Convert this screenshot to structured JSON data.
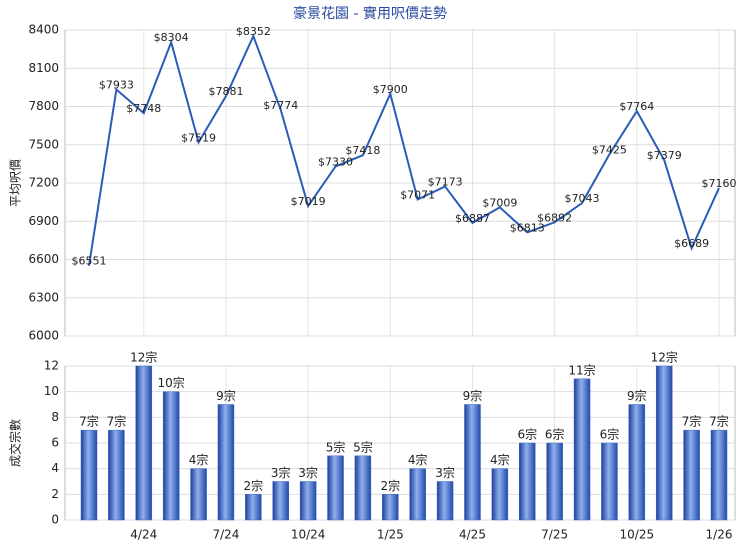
{
  "chart_data": [
    {
      "type": "line",
      "title": "豪景花園 - 實用呎價走勢",
      "ylabel": "平均呎價",
      "color": "#2a5cb8",
      "values": [
        6551,
        7933,
        7748,
        8304,
        7519,
        7881,
        8352,
        7774,
        7019,
        7330,
        7418,
        7900,
        7071,
        7173,
        6887,
        7009,
        6813,
        6892,
        7043,
        7425,
        7764,
        7379,
        6689,
        7160
      ],
      "value_labels": [
        "$6551",
        "$7933",
        "$7748",
        "$8304",
        "$7519",
        "$7881",
        "$8352",
        "$7774",
        "$7019",
        "$7330",
        "$7418",
        "$7900",
        "$7071",
        "$7173",
        "$6887",
        "$7009",
        "$6813",
        "$6892",
        "$7043",
        "$7425",
        "$7764",
        "$7379",
        "$6689",
        "$7160"
      ],
      "ylim": [
        6000,
        8400
      ],
      "yticks": [
        6000,
        6300,
        6600,
        6900,
        7200,
        7500,
        7800,
        8100,
        8400
      ],
      "grid": true
    },
    {
      "type": "bar",
      "ylabel": "成交宗數",
      "color": "#3a66c4",
      "categories": [
        null,
        null,
        "4/24",
        null,
        null,
        "7/24",
        null,
        null,
        "10/24",
        null,
        null,
        "1/25",
        null,
        null,
        "4/25",
        null,
        null,
        "7/25",
        null,
        null,
        "10/25",
        null,
        null,
        "1/26"
      ],
      "values": [
        7,
        7,
        12,
        10,
        4,
        9,
        2,
        3,
        3,
        5,
        5,
        2,
        4,
        3,
        9,
        4,
        6,
        6,
        11,
        6,
        9,
        12,
        7,
        7
      ],
      "value_labels": [
        "7宗",
        "7宗",
        "12宗",
        "10宗",
        "4宗",
        "9宗",
        "2宗",
        "3宗",
        "3宗",
        "5宗",
        "5宗",
        "2宗",
        "4宗",
        "3宗",
        "9宗",
        "4宗",
        "6宗",
        "6宗",
        "11宗",
        "6宗",
        "9宗",
        "12宗",
        "7宗",
        "7宗"
      ],
      "ylim": [
        0,
        12
      ],
      "yticks": [
        0,
        2,
        4,
        6,
        8,
        10,
        12
      ],
      "grid": true
    }
  ]
}
